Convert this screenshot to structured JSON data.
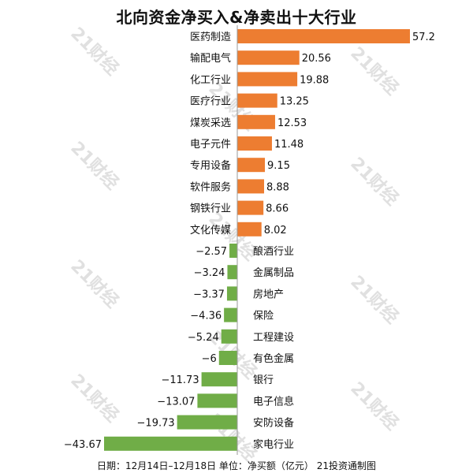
{
  "header": {
    "title": "北向资金净买入&净卖出十大行业"
  },
  "footer": {
    "text": "日期：12月14日–12月18日 单位：净买额（亿元） 21投资通制图"
  },
  "watermark": "21财经",
  "colors": {
    "positive": "#ED7D31",
    "negative": "#70AD47",
    "axis": "#999999"
  },
  "chart_data": {
    "type": "bar",
    "orientation": "horizontal",
    "title": "北向资金净买入&净卖出十大行业",
    "categories": [
      "医药制造",
      "输配电气",
      "化工行业",
      "医疗行业",
      "煤炭采选",
      "电子元件",
      "专用设备",
      "软件服务",
      "钢铁行业",
      "文化传媒",
      "酿酒行业",
      "金属制品",
      "房地产",
      "保险",
      "工程建设",
      "有色金属",
      "银行",
      "电子信息",
      "安防设备",
      "家电行业"
    ],
    "values": [
      57.2,
      20.56,
      19.88,
      13.25,
      12.53,
      11.48,
      9.15,
      8.88,
      8.66,
      8.02,
      -2.57,
      -3.24,
      -3.37,
      -4.36,
      -5.24,
      -6,
      -11.73,
      -13.07,
      -19.73,
      -43.67
    ],
    "value_labels": [
      "57.2",
      "20.56",
      "19.88",
      "13.25",
      "12.53",
      "11.48",
      "9.15",
      "8.88",
      "8.66",
      "8.02",
      "−2.57",
      "−3.24",
      "−3.37",
      "−4.36",
      "−5.24",
      "−6",
      "−11.73",
      "−13.07",
      "−19.73",
      "−43.67"
    ],
    "xlim": [
      -43.67,
      57.2
    ],
    "grid": false,
    "legend": "none"
  }
}
